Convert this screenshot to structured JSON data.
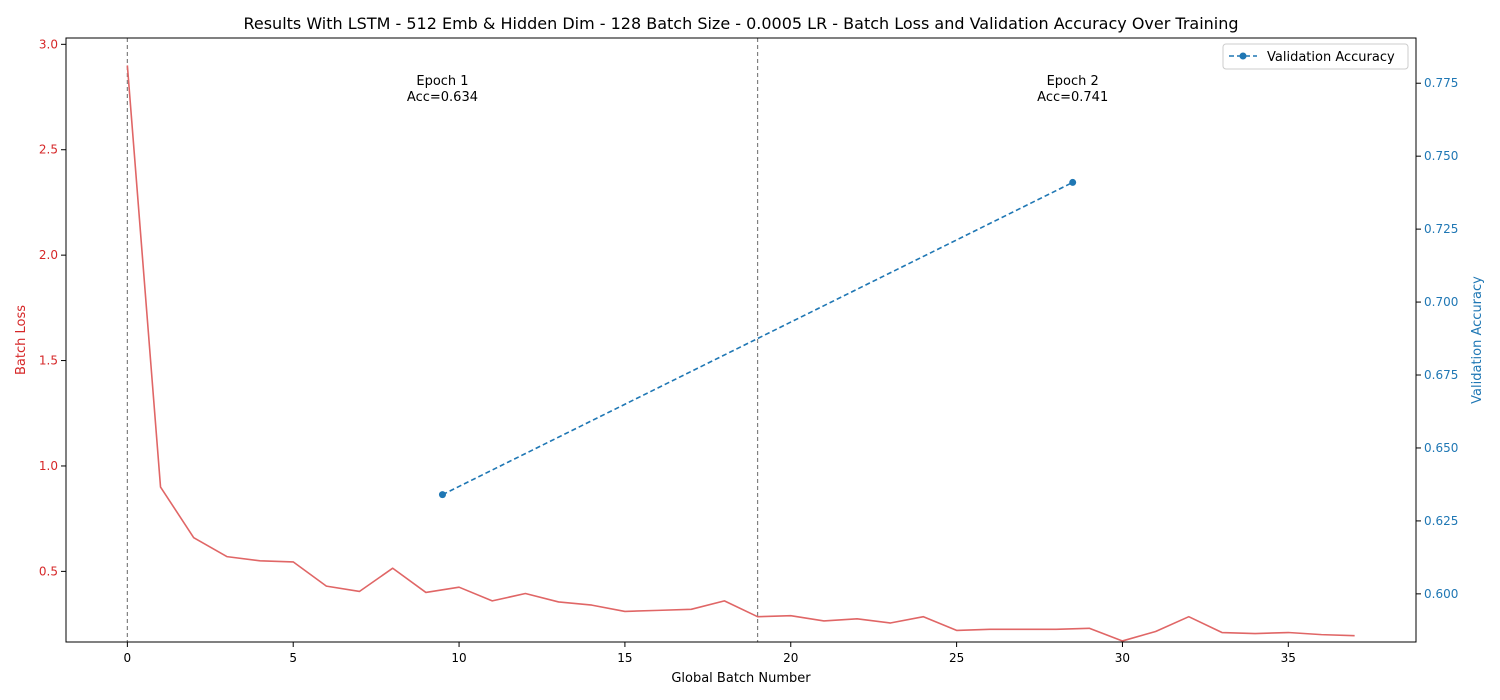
{
  "chart_data": {
    "type": "line",
    "title": "Results With LSTM - 512 Emb & Hidden Dim - 128 Batch Size - 0.0005 LR - Batch Loss and Validation Accuracy Over Training",
    "xlabel": "Global Batch Number",
    "xlim": [
      -1.85,
      38.85
    ],
    "xticks": [
      0,
      5,
      10,
      15,
      20,
      25,
      30,
      35
    ],
    "grid": false,
    "legend_position": "top-right",
    "left_axis": {
      "ylabel": "Batch Loss",
      "color": "#d62728",
      "ylim": [
        0.165,
        3.03
      ],
      "yticks": [
        0.5,
        1.0,
        1.5,
        2.0,
        2.5,
        3.0
      ],
      "tick_labels": [
        "0.5",
        "1.0",
        "1.5",
        "2.0",
        "2.5",
        "3.0"
      ]
    },
    "right_axis": {
      "ylabel": "Validation Accuracy",
      "color": "#1f77b4",
      "ylim": [
        0.5835,
        0.7905
      ],
      "yticks": [
        0.6,
        0.625,
        0.65,
        0.675,
        0.7,
        0.725,
        0.75,
        0.775
      ],
      "tick_labels": [
        "0.600",
        "0.625",
        "0.650",
        "0.675",
        "0.700",
        "0.725",
        "0.750",
        "0.775"
      ]
    },
    "series": [
      {
        "axis": "left",
        "color": "#e06666",
        "x": [
          0,
          1,
          2,
          3,
          4,
          5,
          6,
          7,
          8,
          9,
          10,
          11,
          12,
          13,
          14,
          15,
          16,
          17,
          18,
          19,
          20,
          21,
          22,
          23,
          24,
          25,
          26,
          27,
          28,
          29,
          30,
          31,
          32,
          33,
          34,
          35,
          36,
          37
        ],
        "values": [
          2.9,
          0.9,
          0.66,
          0.57,
          0.55,
          0.545,
          0.43,
          0.405,
          0.515,
          0.4,
          0.425,
          0.36,
          0.395,
          0.355,
          0.34,
          0.31,
          0.315,
          0.32,
          0.36,
          0.285,
          0.29,
          0.265,
          0.275,
          0.255,
          0.285,
          0.22,
          0.225,
          0.225,
          0.225,
          0.23,
          0.17,
          0.215,
          0.285,
          0.21,
          0.205,
          0.21,
          0.2,
          0.195
        ]
      },
      {
        "axis": "right",
        "name": "Validation Accuracy",
        "color": "#1f77b4",
        "style": "dashed",
        "marker": "circle",
        "x": [
          9.5,
          28.5
        ],
        "values": [
          0.634,
          0.741
        ]
      }
    ],
    "epoch_lines": [
      0,
      19
    ],
    "annotations": [
      {
        "x": 9.5,
        "line1": "Epoch 1",
        "line2": "Acc=0.634"
      },
      {
        "x": 28.5,
        "line1": "Epoch 2",
        "line2": "Acc=0.741"
      }
    ]
  }
}
